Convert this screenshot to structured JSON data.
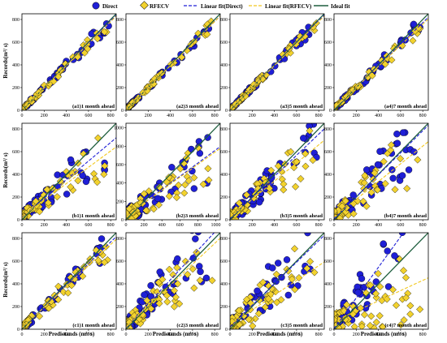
{
  "legend": {
    "direct": "Direct",
    "rfecv": "RFECV",
    "linear_direct": "Linear fit(Direct)",
    "linear_rfecv": "Linear fit(RFECV)",
    "ideal": "Ideal fit"
  },
  "labels": {
    "xlabel": "Predictands (m³/ s)",
    "ylabel": "Records(m³/ s)"
  },
  "colors": {
    "direct": "#1f1fd6",
    "rfecv": "#f2d22e",
    "linear_direct": "#1f1fd6",
    "linear_rfecv": "#f2c81e",
    "ideal": "#1f5f3f"
  },
  "chart_data": [
    {
      "id": "a1",
      "type": "scatter",
      "label": "(a1)1 month ahead",
      "lim": [
        0,
        850
      ],
      "ticks": [
        0,
        200,
        400,
        600,
        800
      ],
      "fit_direct": [
        0.98,
        4
      ],
      "fit_rfecv": [
        0.97,
        5
      ],
      "n": 60,
      "spread": 0.1
    },
    {
      "id": "a2",
      "type": "scatter",
      "label": "(a2)3 month ahead",
      "lim": [
        0,
        850
      ],
      "ticks": [
        0,
        200,
        400,
        600,
        800
      ],
      "fit_direct": [
        0.97,
        6
      ],
      "fit_rfecv": [
        0.97,
        5
      ],
      "n": 60,
      "spread": 0.08
    },
    {
      "id": "a3",
      "type": "scatter",
      "label": "(a3)5 month ahead",
      "lim": [
        0,
        850
      ],
      "ticks": [
        0,
        200,
        400,
        600,
        800
      ],
      "fit_direct": [
        0.98,
        5
      ],
      "fit_rfecv": [
        0.97,
        6
      ],
      "n": 60,
      "spread": 0.09
    },
    {
      "id": "a4",
      "type": "scatter",
      "label": "(a4)7 month ahead",
      "lim": [
        0,
        850
      ],
      "ticks": [
        0,
        200,
        400,
        600,
        800
      ],
      "fit_direct": [
        0.95,
        12
      ],
      "fit_rfecv": [
        0.93,
        14
      ],
      "n": 60,
      "spread": 0.12
    },
    {
      "id": "b1",
      "type": "scatter",
      "label": "(b1)1 month ahead",
      "lim": [
        0,
        850
      ],
      "ticks": [
        0,
        200,
        400,
        600,
        800
      ],
      "fit_direct": [
        0.82,
        25
      ],
      "fit_rfecv": [
        0.72,
        30
      ],
      "n": 70,
      "spread": 0.35
    },
    {
      "id": "b2",
      "type": "scatter",
      "label": "(b2)3 month ahead",
      "lim": [
        0,
        1050
      ],
      "ticks": [
        0,
        200,
        400,
        600,
        800,
        1000
      ],
      "fit_direct": [
        0.72,
        40
      ],
      "fit_rfecv": [
        0.7,
        42
      ],
      "n": 70,
      "spread": 0.45
    },
    {
      "id": "b3",
      "type": "scatter",
      "label": "(b3)5 month ahead",
      "lim": [
        0,
        850
      ],
      "ticks": [
        0,
        200,
        400,
        600,
        800
      ],
      "fit_direct": [
        0.93,
        10
      ],
      "fit_rfecv": [
        0.8,
        20
      ],
      "n": 70,
      "spread": 0.4
    },
    {
      "id": "b4",
      "type": "scatter",
      "label": "(b4)7 month ahead",
      "lim": [
        0,
        850
      ],
      "ticks": [
        0,
        200,
        400,
        600,
        800
      ],
      "fit_direct": [
        0.97,
        8
      ],
      "fit_rfecv": [
        0.78,
        25
      ],
      "n": 70,
      "spread": 0.5
    },
    {
      "id": "c1",
      "type": "scatter",
      "label": "(c1)1 month ahead",
      "lim": [
        0,
        850
      ],
      "ticks": [
        0,
        200,
        400,
        600,
        800
      ],
      "fit_direct": [
        0.95,
        8
      ],
      "fit_rfecv": [
        0.92,
        10
      ],
      "n": 60,
      "spread": 0.2
    },
    {
      "id": "c2",
      "type": "scatter",
      "label": "(c2)3 month ahead",
      "lim": [
        0,
        850
      ],
      "ticks": [
        0,
        200,
        400,
        600,
        800
      ],
      "fit_direct": [
        1.05,
        15
      ],
      "fit_rfecv": [
        0.92,
        20
      ],
      "n": 70,
      "spread": 0.55
    },
    {
      "id": "c3",
      "type": "scatter",
      "label": "(c3)5 month ahead",
      "lim": [
        0,
        850
      ],
      "ticks": [
        0,
        200,
        400,
        600,
        800
      ],
      "fit_direct": [
        0.95,
        20
      ],
      "fit_rfecv": [
        0.65,
        40
      ],
      "n": 70,
      "spread": 0.6
    },
    {
      "id": "c4",
      "type": "scatter",
      "label": "(c4)7 month ahead",
      "lim": [
        0,
        850
      ],
      "ticks": [
        0,
        200,
        400,
        600,
        800
      ],
      "fit_direct": [
        1.35,
        5
      ],
      "fit_rfecv": [
        0.45,
        70
      ],
      "n": 70,
      "spread": 0.7
    }
  ]
}
